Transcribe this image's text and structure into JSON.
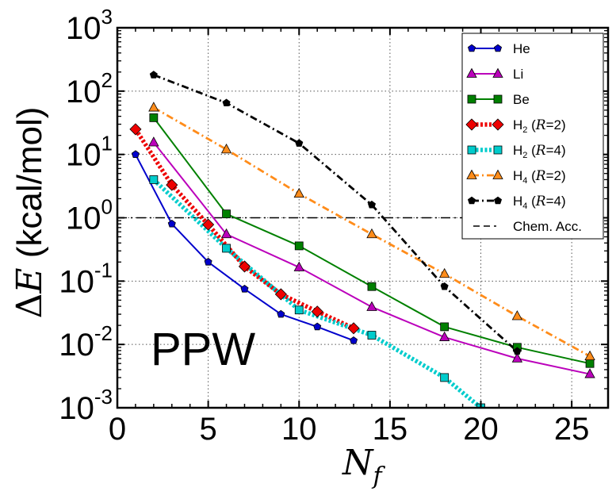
{
  "chart_data": {
    "type": "line",
    "yscale": "log",
    "xlim": [
      0,
      27
    ],
    "ylim": [
      0.001,
      1000
    ],
    "grid": true,
    "legend_placement": "top-right",
    "panel_label": "PPW",
    "xlabel": {
      "main": "N",
      "sub": "f"
    },
    "ylabel": {
      "delta": "Δ",
      "var": "E",
      "unit": " (kcal/mol)"
    },
    "x_ticks": [
      {
        "value": 0,
        "label": "0"
      },
      {
        "value": 5,
        "label": "5"
      },
      {
        "value": 10,
        "label": "10"
      },
      {
        "value": 15,
        "label": "15"
      },
      {
        "value": 20,
        "label": "20"
      },
      {
        "value": 25,
        "label": "25"
      }
    ],
    "y_ticks": [
      {
        "value": 0.001,
        "base": "10",
        "exp": "-3"
      },
      {
        "value": 0.01,
        "base": "10",
        "exp": "-2"
      },
      {
        "value": 0.1,
        "base": "10",
        "exp": "-1"
      },
      {
        "value": 1,
        "base": "10",
        "exp": "0"
      },
      {
        "value": 10,
        "base": "10",
        "exp": "1"
      },
      {
        "value": 100,
        "base": "10",
        "exp": "2"
      },
      {
        "value": 1000,
        "base": "10",
        "exp": "3"
      }
    ],
    "reference_line": {
      "name": "Chem. Acc.",
      "value": 1.0,
      "color": "#000000",
      "style": "dashed"
    },
    "series": [
      {
        "name": "He",
        "base": "He",
        "color": "#0000cc",
        "marker": "pentagon",
        "style": "solid",
        "x": [
          1,
          3,
          5,
          7,
          9,
          11,
          13
        ],
        "y": [
          10,
          0.8,
          0.2,
          0.075,
          0.03,
          0.019,
          0.0115
        ]
      },
      {
        "name": "Li",
        "base": "Li",
        "color": "#bb00bb",
        "marker": "triangle",
        "style": "solid",
        "x": [
          2,
          6,
          10,
          14,
          18,
          22,
          26
        ],
        "y": [
          15.5,
          0.55,
          0.165,
          0.039,
          0.013,
          0.006,
          0.0034
        ]
      },
      {
        "name": "Be",
        "base": "Be",
        "color": "#008000",
        "marker": "square",
        "style": "solid",
        "x": [
          2,
          6,
          10,
          14,
          18,
          22,
          26
        ],
        "y": [
          38,
          1.15,
          0.36,
          0.082,
          0.019,
          0.009,
          0.005
        ]
      },
      {
        "name": "H2 (R=2)",
        "base": "H",
        "sub": "2",
        "param": "R",
        "pval": "2",
        "color": "#ee0000",
        "marker": "diamond",
        "style": "dotted-thick",
        "x": [
          1,
          3,
          5,
          7,
          9,
          11,
          13
        ],
        "y": [
          25,
          3.3,
          0.78,
          0.17,
          0.062,
          0.033,
          0.018
        ]
      },
      {
        "name": "H2 (R=4)",
        "base": "H",
        "sub": "2",
        "param": "R",
        "pval": "4",
        "color": "#00cccc",
        "marker": "square",
        "style": "dotted-thick",
        "x": [
          2,
          6,
          10,
          14,
          18,
          20
        ],
        "y": [
          4.0,
          0.33,
          0.035,
          0.014,
          0.003,
          0.001
        ]
      },
      {
        "name": "H4 (R=2)",
        "base": "H",
        "sub": "4",
        "param": "R",
        "pval": "2",
        "color": "#ff8c1a",
        "marker": "triangle",
        "style": "dashdot",
        "x": [
          2,
          6,
          10,
          14,
          18,
          22,
          26
        ],
        "y": [
          55,
          12,
          2.4,
          0.55,
          0.13,
          0.028,
          0.0065
        ]
      },
      {
        "name": "H4 (R=4)",
        "base": "H",
        "sub": "4",
        "param": "R",
        "pval": "4",
        "color": "#000000",
        "marker": "pentagon",
        "style": "dashdot",
        "x": [
          2,
          6,
          10,
          14,
          18,
          22
        ],
        "y": [
          180,
          65,
          15,
          1.6,
          0.082,
          0.0078
        ]
      }
    ]
  }
}
